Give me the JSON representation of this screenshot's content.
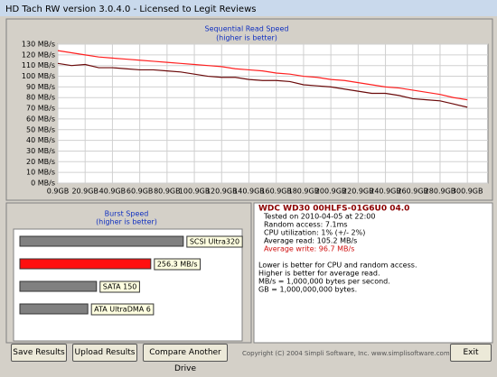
{
  "window": {
    "title": "HD Tach RW version 3.0.4.0 - Licensed to Legit Reviews"
  },
  "chart_data": [
    {
      "type": "line",
      "title": "Sequential Read Speed",
      "subtitle": "(higher is better)",
      "x": [
        0.9,
        10.9,
        20.9,
        30.9,
        40.9,
        50.9,
        60.9,
        70.9,
        80.9,
        90.9,
        100.9,
        110.9,
        120.9,
        130.9,
        140.9,
        150.9,
        160.9,
        170.9,
        180.9,
        190.9,
        200.9,
        210.9,
        220.9,
        230.9,
        240.9,
        250.9,
        260.9,
        270.9,
        280.9,
        290.9,
        300.9
      ],
      "series": [
        {
          "color": "#ff2020",
          "values": [
            124,
            122,
            120,
            118,
            117,
            116,
            115,
            114,
            113,
            112,
            111,
            110,
            109,
            107,
            106,
            105,
            103,
            102,
            100,
            99,
            97,
            96,
            94,
            92,
            90,
            89,
            87,
            85,
            83,
            80,
            78
          ]
        },
        {
          "color": "#6b0a0a",
          "values": [
            112,
            110,
            111,
            108,
            108,
            107,
            106,
            106,
            105,
            104,
            102,
            100,
            99,
            99,
            97,
            96,
            96,
            95,
            92,
            91,
            90,
            88,
            86,
            84,
            84,
            82,
            79,
            78,
            77,
            74,
            71
          ]
        }
      ],
      "xlim": [
        0.9,
        316
      ],
      "xticks": [
        {
          "value": 0.9,
          "label": "0.9GB"
        },
        {
          "value": 20.9,
          "label": "20.9GB"
        },
        {
          "value": 40.9,
          "label": "40.9GB"
        },
        {
          "value": 60.9,
          "label": "60.9GB"
        },
        {
          "value": 80.9,
          "label": "80.9GB"
        },
        {
          "value": 100.9,
          "label": "100.9GB"
        },
        {
          "value": 120.9,
          "label": "120.9GB"
        },
        {
          "value": 140.9,
          "label": "140.9GB"
        },
        {
          "value": 160.9,
          "label": "160.9GB"
        },
        {
          "value": 180.9,
          "label": "180.9GB"
        },
        {
          "value": 200.9,
          "label": "200.9GB"
        },
        {
          "value": 220.9,
          "label": "220.9GB"
        },
        {
          "value": 240.9,
          "label": "240.9GB"
        },
        {
          "value": 260.9,
          "label": "260.9GB"
        },
        {
          "value": 280.9,
          "label": "280.9GB"
        },
        {
          "value": 300.9,
          "label": "300.9GB"
        }
      ],
      "ylim": [
        0,
        130
      ],
      "yticks": [
        {
          "value": 0,
          "label": "0 MB/s"
        },
        {
          "value": 10,
          "label": "10 MB/s"
        },
        {
          "value": 20,
          "label": "20 MB/s"
        },
        {
          "value": 30,
          "label": "30 MB/s"
        },
        {
          "value": 40,
          "label": "40 MB/s"
        },
        {
          "value": 50,
          "label": "50 MB/s"
        },
        {
          "value": 60,
          "label": "60 MB/s"
        },
        {
          "value": 70,
          "label": "70 MB/s"
        },
        {
          "value": 80,
          "label": "80 MB/s"
        },
        {
          "value": 90,
          "label": "90 MB/s"
        },
        {
          "value": 100,
          "label": "100 MB/s"
        },
        {
          "value": 110,
          "label": "110 MB/s"
        },
        {
          "value": 120,
          "label": "120 MB/s"
        },
        {
          "value": 130,
          "label": "130 MB/s"
        }
      ],
      "grid": true
    },
    {
      "type": "hbar",
      "title": "Burst Speed",
      "subtitle": "(higher is better)",
      "categories": [
        "SCSI Ultra320",
        null,
        "SATA 150",
        "ATA UltraDMA 6"
      ],
      "values": [
        320,
        256.3,
        150,
        133
      ],
      "value_labels": [
        null,
        "256.3 MB/s",
        null,
        null
      ],
      "colors": [
        "#808080",
        "#ff1010",
        "#808080",
        "#808080"
      ],
      "xlim": [
        0,
        430
      ]
    }
  ],
  "drive_info": {
    "title": "WDC WD30 00HLFS-01G6U0 04.0",
    "lines": [
      "Tested on 2010-04-05 at 22:00",
      "Random access: 7.1ms",
      "CPU utilization: 1% (+/- 2%)",
      "Average read: 105.2 MB/s"
    ],
    "write": "Average write: 96.7 MB/s"
  },
  "notes": [
    "Lower is better for CPU and random access.",
    "Higher is better for average read.",
    "MB/s = 1,000,000 bytes per second.",
    "GB = 1,000,000,000 bytes."
  ],
  "buttons": [
    "Save Results",
    "Upload Results",
    "Compare Another Drive",
    "Exit"
  ],
  "copyright": "Copyright (C) 2004 Simpli Software, Inc. www.simplisoftware.com"
}
